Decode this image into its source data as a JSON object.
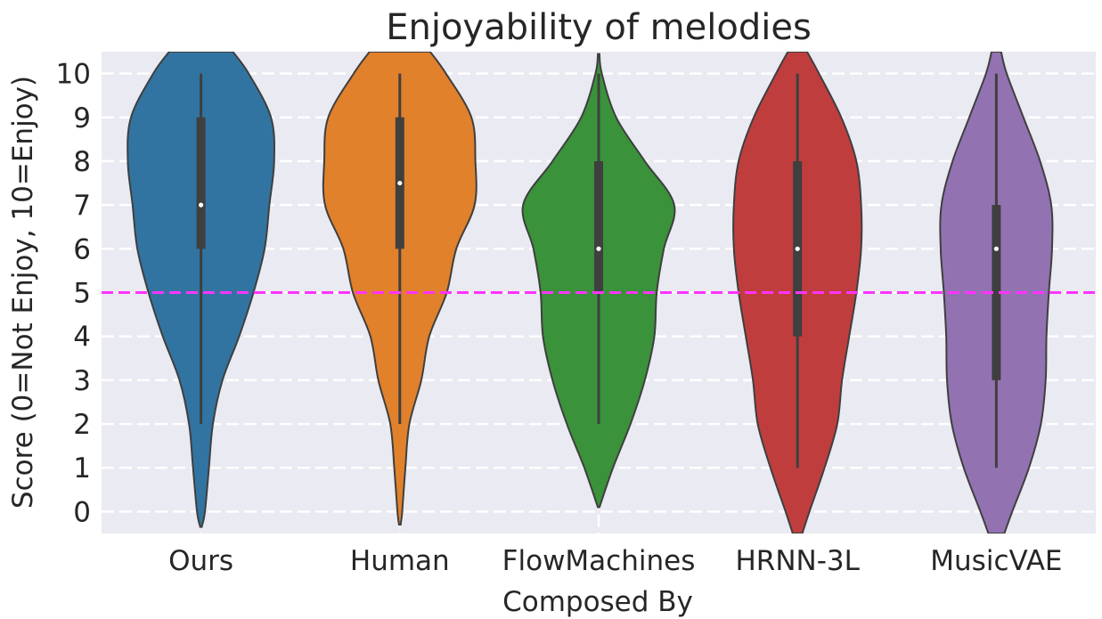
{
  "chart_data": {
    "type": "violin",
    "title": "Enjoyability of melodies",
    "xlabel": "Composed By",
    "ylabel": "Score (0=Not Enjoy, 10=Enjoy)",
    "categories": [
      "Ours",
      "Human",
      "FlowMachines",
      "HRNN-3L",
      "MusicVAE"
    ],
    "ylim": [
      -0.5,
      10.5
    ],
    "yticks": [
      0,
      1,
      2,
      3,
      4,
      5,
      6,
      7,
      8,
      9,
      10
    ],
    "grid": true,
    "reference_line": {
      "y": 5,
      "color": "#ff33ff",
      "style": "dashed"
    },
    "colors": {
      "background": "#eaeaf2",
      "grid": "#ffffff",
      "Ours": "#3274a1",
      "Human": "#e1812c",
      "FlowMachines": "#3a923a",
      "HRNN-3L": "#c03d3e",
      "MusicVAE": "#9372b2"
    },
    "series": [
      {
        "name": "Ours",
        "whisker": [
          2,
          10
        ],
        "quartiles": [
          6,
          9
        ],
        "median": 7,
        "density": [
          [
            -0.35,
            0.01
          ],
          [
            0,
            0.05
          ],
          [
            1,
            0.1
          ],
          [
            2,
            0.15
          ],
          [
            3,
            0.27
          ],
          [
            4,
            0.48
          ],
          [
            5,
            0.66
          ],
          [
            6,
            0.8
          ],
          [
            7,
            0.86
          ],
          [
            8,
            0.92
          ],
          [
            9,
            0.88
          ],
          [
            10,
            0.6
          ],
          [
            10.5,
            0.4
          ]
        ]
      },
      {
        "name": "Human",
        "whisker": [
          2,
          10
        ],
        "quartiles": [
          6,
          9
        ],
        "median": 7.5,
        "density": [
          [
            -0.3,
            0.01
          ],
          [
            0,
            0.03
          ],
          [
            1,
            0.07
          ],
          [
            2,
            0.12
          ],
          [
            3,
            0.27
          ],
          [
            4,
            0.37
          ],
          [
            5,
            0.59
          ],
          [
            6,
            0.71
          ],
          [
            7,
            0.94
          ],
          [
            8,
            0.95
          ],
          [
            9,
            0.9
          ],
          [
            10,
            0.58
          ],
          [
            10.5,
            0.38
          ]
        ]
      },
      {
        "name": "FlowMachines",
        "whisker": [
          2,
          10
        ],
        "quartiles": [
          5,
          8
        ],
        "median": 6,
        "density": [
          [
            0.1,
            0.01
          ],
          [
            1,
            0.18
          ],
          [
            2,
            0.4
          ],
          [
            3,
            0.58
          ],
          [
            4,
            0.7
          ],
          [
            5,
            0.73
          ],
          [
            6,
            0.82
          ],
          [
            7,
            0.95
          ],
          [
            8,
            0.58
          ],
          [
            9,
            0.22
          ],
          [
            10,
            0.04
          ],
          [
            10.45,
            0.01
          ]
        ]
      },
      {
        "name": "HRNN-3L",
        "whisker": [
          1,
          10
        ],
        "quartiles": [
          4,
          8
        ],
        "median": 6,
        "density": [
          [
            -0.5,
            0.06
          ],
          [
            0,
            0.15
          ],
          [
            1,
            0.34
          ],
          [
            2,
            0.5
          ],
          [
            3,
            0.56
          ],
          [
            4,
            0.65
          ],
          [
            5,
            0.74
          ],
          [
            6,
            0.8
          ],
          [
            7,
            0.8
          ],
          [
            8,
            0.74
          ],
          [
            9,
            0.55
          ],
          [
            10,
            0.27
          ],
          [
            10.5,
            0.12
          ]
        ]
      },
      {
        "name": "MusicVAE",
        "whisker": [
          1,
          10
        ],
        "quartiles": [
          3,
          7
        ],
        "median": 6,
        "density": [
          [
            -0.5,
            0.1
          ],
          [
            0,
            0.2
          ],
          [
            1,
            0.41
          ],
          [
            2,
            0.56
          ],
          [
            3,
            0.62
          ],
          [
            4,
            0.63
          ],
          [
            5,
            0.66
          ],
          [
            6,
            0.7
          ],
          [
            7,
            0.69
          ],
          [
            8,
            0.55
          ],
          [
            9,
            0.34
          ],
          [
            10,
            0.13
          ],
          [
            10.5,
            0.06
          ]
        ]
      }
    ]
  }
}
